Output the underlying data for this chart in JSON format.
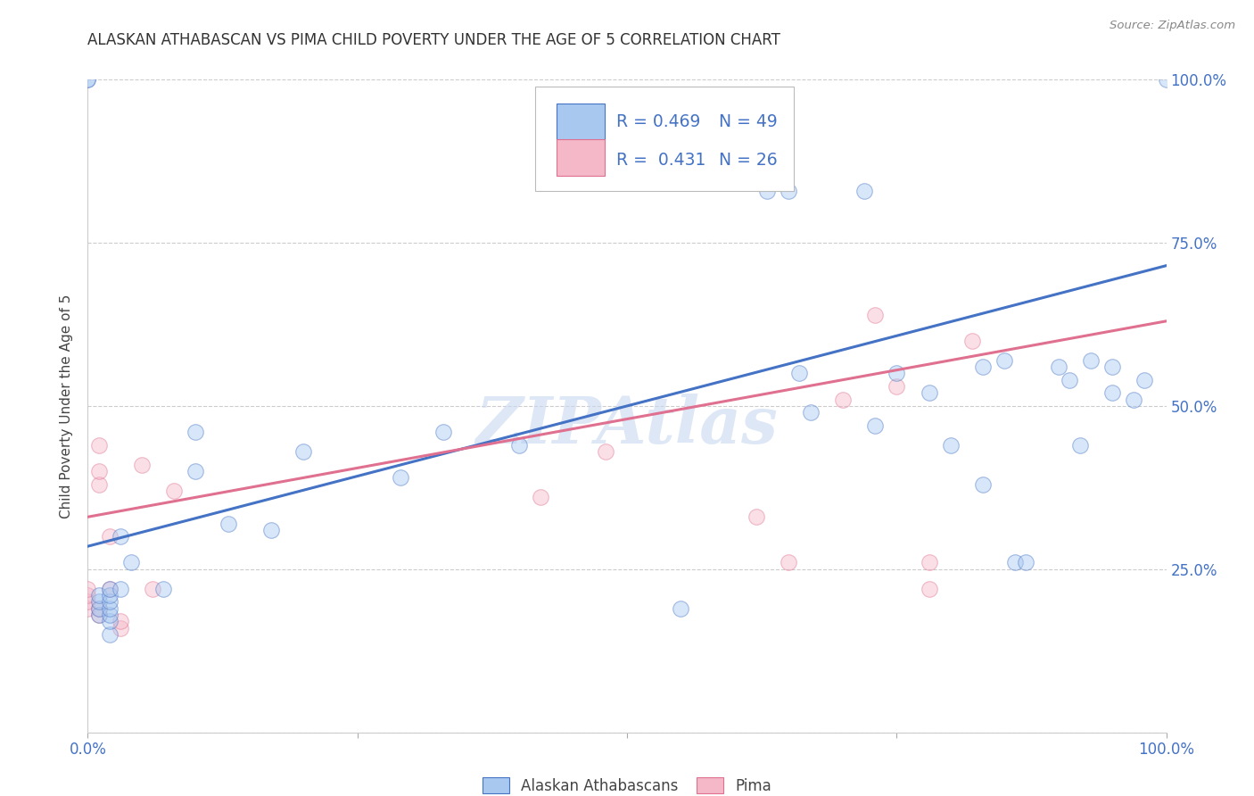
{
  "title": "ALASKAN ATHABASCAN VS PIMA CHILD POVERTY UNDER THE AGE OF 5 CORRELATION CHART",
  "source": "Source: ZipAtlas.com",
  "ylabel": "Child Poverty Under the Age of 5",
  "xlim": [
    0.0,
    1.0
  ],
  "ylim": [
    0.0,
    1.0
  ],
  "xticks": [
    0.0,
    0.25,
    0.5,
    0.75,
    1.0
  ],
  "xticklabels": [
    "0.0%",
    "",
    "",
    "",
    "100.0%"
  ],
  "ytick_positions": [
    0.0,
    0.25,
    0.5,
    0.75,
    1.0
  ],
  "yticklabels_right": [
    "",
    "25.0%",
    "50.0%",
    "75.0%",
    "100.0%"
  ],
  "blue_color": "#A8C8F0",
  "pink_color": "#F4B8C8",
  "blue_line_color": "#4472C4",
  "pink_line_color": "#E07090",
  "legend_r_blue": "R = 0.469",
  "legend_n_blue": "N = 49",
  "legend_r_pink": "R =  0.431",
  "legend_n_pink": "N = 26",
  "legend_label_blue": "Alaskan Athabascans",
  "legend_label_pink": "Pima",
  "watermark": "ZIPAtlas",
  "blue_x": [
    0.0,
    0.0,
    0.01,
    0.01,
    0.01,
    0.01,
    0.02,
    0.02,
    0.02,
    0.02,
    0.02,
    0.02,
    0.02,
    0.03,
    0.03,
    0.04,
    0.07,
    0.1,
    0.1,
    0.13,
    0.17,
    0.2,
    0.29,
    0.33,
    0.4,
    0.55,
    0.63,
    0.65,
    0.66,
    0.67,
    0.72,
    0.73,
    0.75,
    0.78,
    0.8,
    0.83,
    0.83,
    0.85,
    0.86,
    0.87,
    0.9,
    0.91,
    0.92,
    0.93,
    0.95,
    0.95,
    0.97,
    0.98,
    1.0
  ],
  "blue_y": [
    1.0,
    1.0,
    0.18,
    0.19,
    0.2,
    0.21,
    0.15,
    0.17,
    0.18,
    0.19,
    0.2,
    0.21,
    0.22,
    0.22,
    0.3,
    0.26,
    0.22,
    0.4,
    0.46,
    0.32,
    0.31,
    0.43,
    0.39,
    0.46,
    0.44,
    0.19,
    0.83,
    0.83,
    0.55,
    0.49,
    0.83,
    0.47,
    0.55,
    0.52,
    0.44,
    0.38,
    0.56,
    0.57,
    0.26,
    0.26,
    0.56,
    0.54,
    0.44,
    0.57,
    0.52,
    0.56,
    0.51,
    0.54,
    1.0
  ],
  "pink_x": [
    0.0,
    0.0,
    0.0,
    0.0,
    0.01,
    0.01,
    0.01,
    0.01,
    0.01,
    0.02,
    0.02,
    0.03,
    0.03,
    0.05,
    0.06,
    0.08,
    0.42,
    0.48,
    0.62,
    0.65,
    0.7,
    0.73,
    0.75,
    0.78,
    0.78,
    0.82
  ],
  "pink_y": [
    0.19,
    0.2,
    0.21,
    0.22,
    0.18,
    0.19,
    0.38,
    0.4,
    0.44,
    0.22,
    0.3,
    0.16,
    0.17,
    0.41,
    0.22,
    0.37,
    0.36,
    0.43,
    0.33,
    0.26,
    0.51,
    0.64,
    0.53,
    0.22,
    0.26,
    0.6
  ],
  "blue_intercept": 0.285,
  "blue_slope": 0.43,
  "pink_intercept": 0.33,
  "pink_slope": 0.3,
  "background_color": "#FFFFFF",
  "grid_color": "#CCCCCC",
  "marker_size": 160,
  "marker_alpha": 0.45,
  "title_color": "#333333",
  "axis_label_color": "#444444",
  "tick_color": "#4472C4",
  "source_color": "#888888"
}
